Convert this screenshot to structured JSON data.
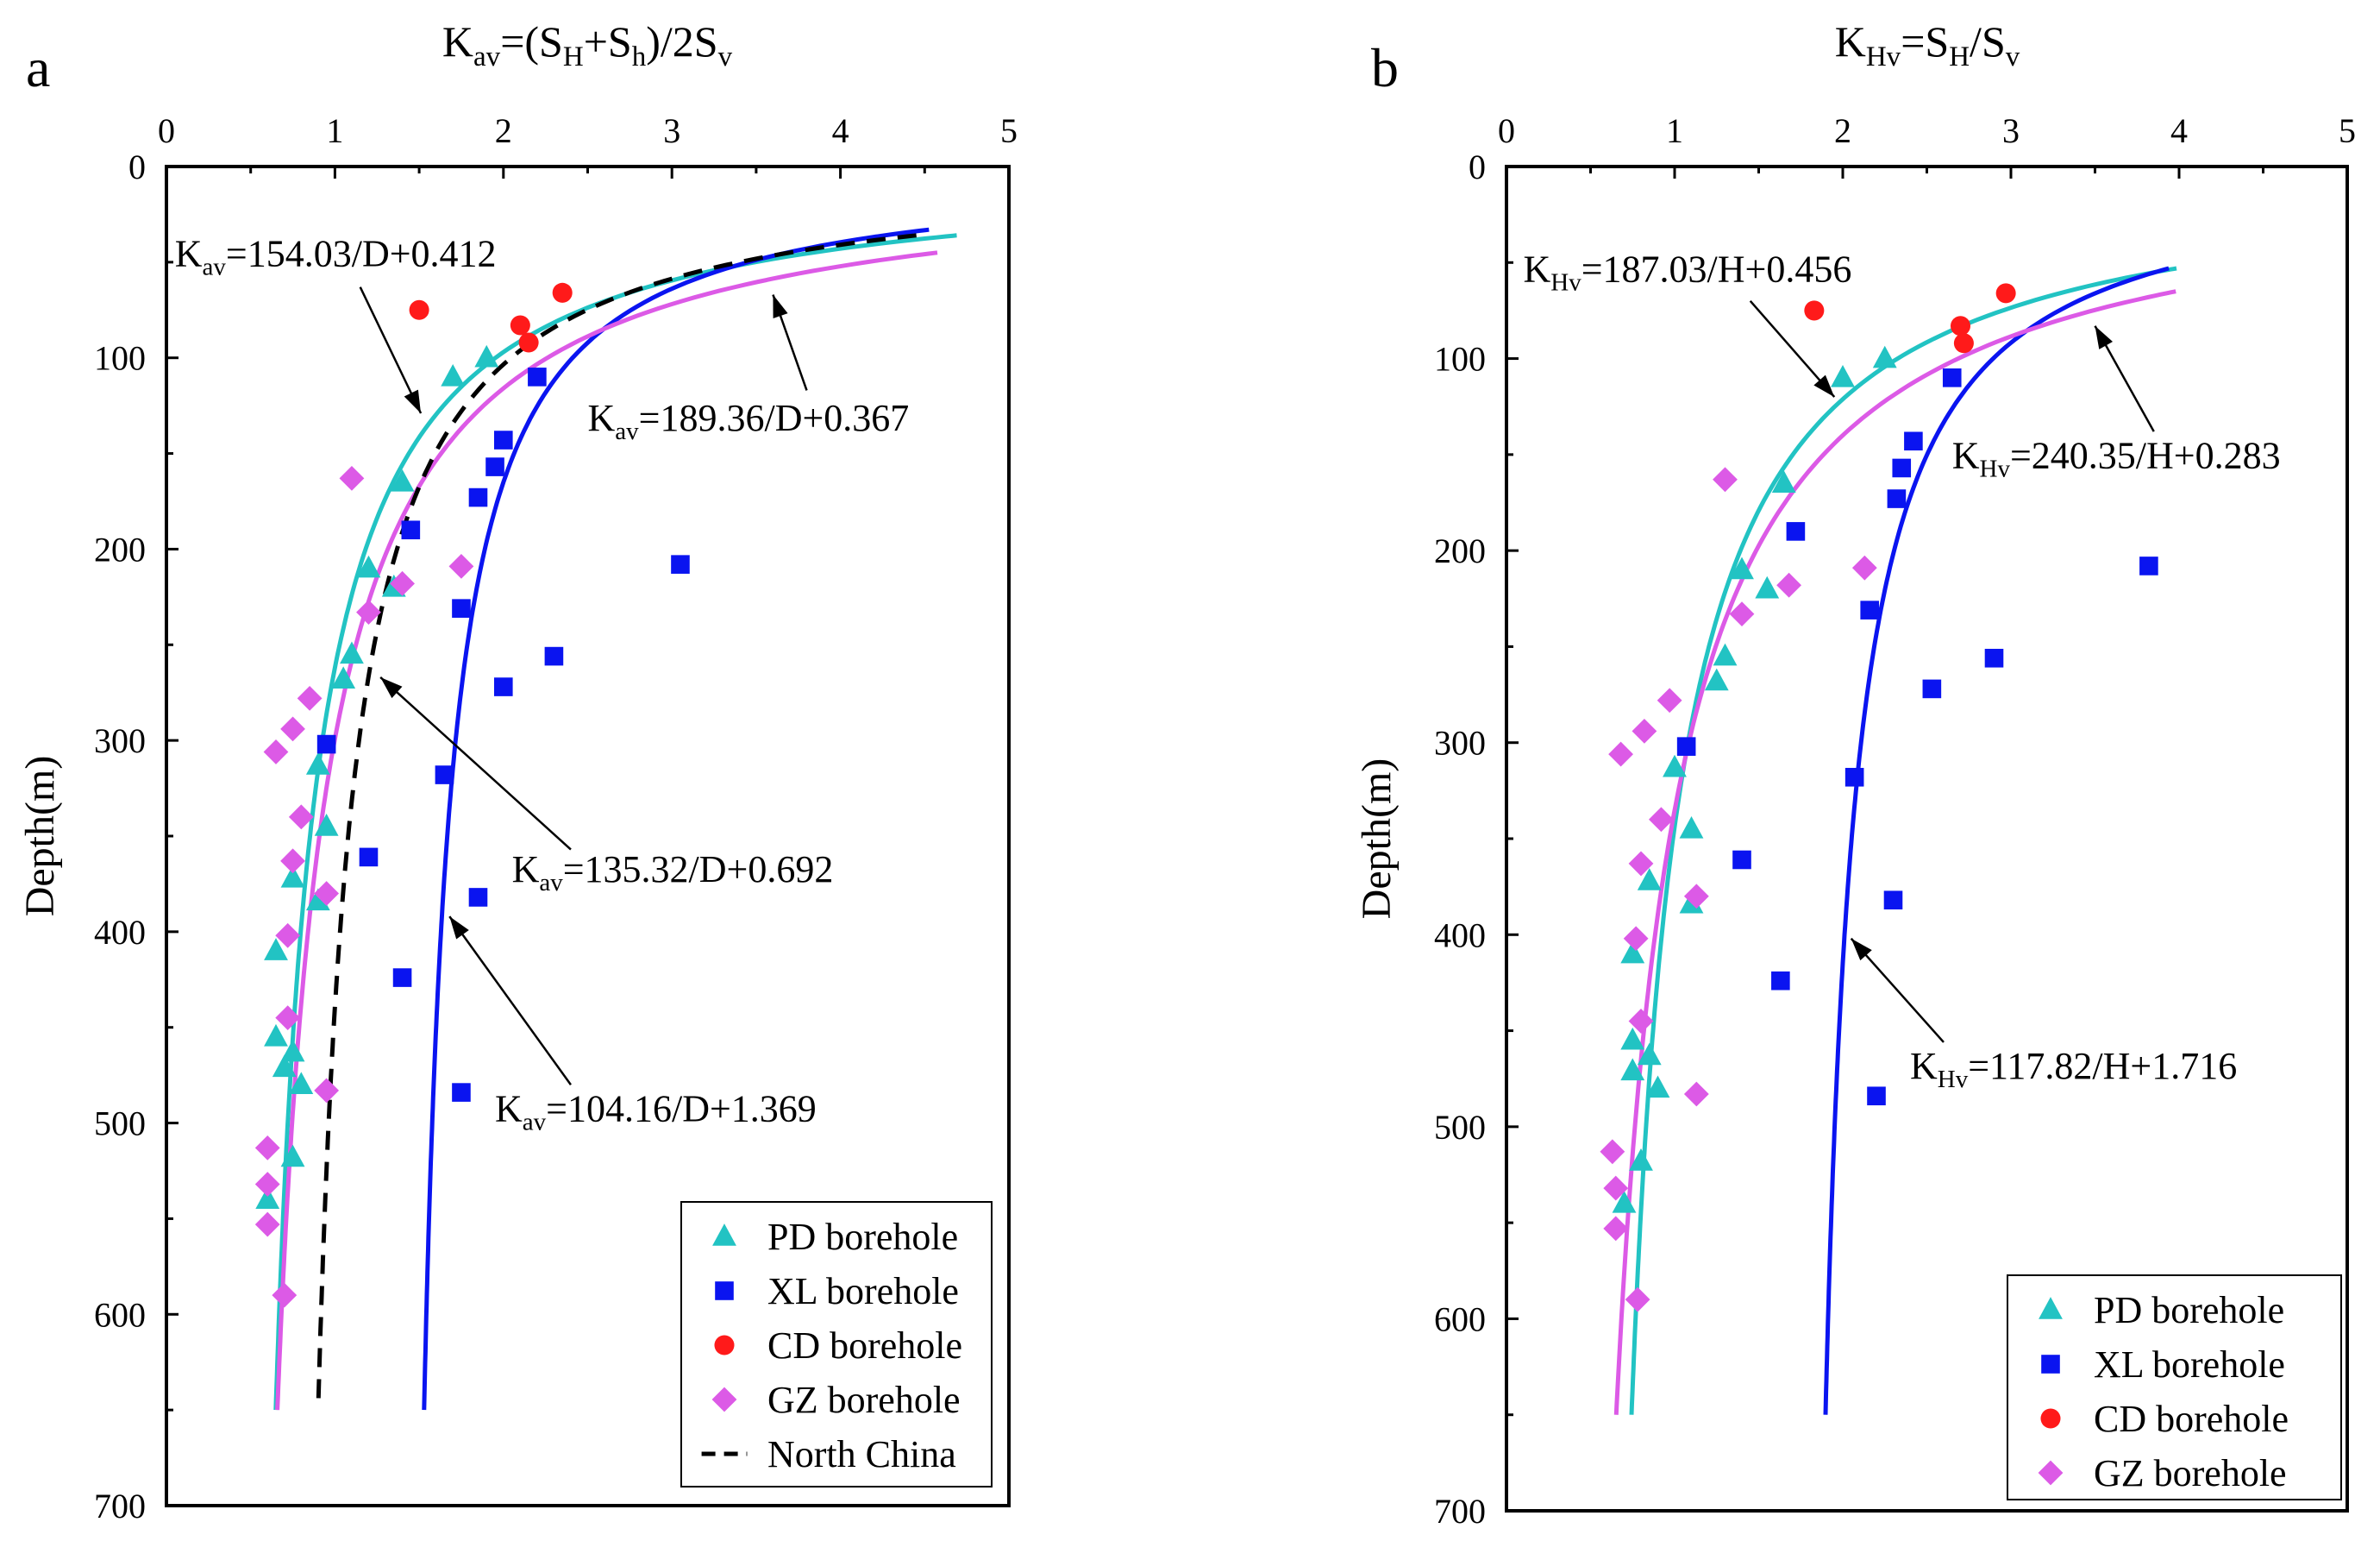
{
  "chart_data": [
    {
      "type": "scatter",
      "panel_label": "a",
      "title_parts": [
        {
          "t": "K",
          "s": "n"
        },
        {
          "t": "av",
          "s": "sub"
        },
        {
          "t": "=(S",
          "s": "n"
        },
        {
          "t": "H",
          "s": "sub"
        },
        {
          "t": "+S",
          "s": "n"
        },
        {
          "t": "h",
          "s": "sub"
        },
        {
          "t": ")/2S",
          "s": "n"
        },
        {
          "t": "v",
          "s": "sub"
        }
      ],
      "ylabel": "Depth(m)",
      "xlim": [
        0,
        5
      ],
      "ylim": [
        0,
        700
      ],
      "x_ticks": [
        "0",
        "1",
        "2",
        "3",
        "4",
        "5"
      ],
      "y_ticks": [
        "0",
        "100",
        "200",
        "300",
        "400",
        "500",
        "600",
        "700"
      ],
      "series": [
        {
          "name": "PD borehole",
          "marker": "triangle",
          "color": "#22c3c3",
          "x": [
            1.7,
            1.9,
            1.4,
            1.2,
            1.35,
            1.1,
            1.05,
            0.9,
            0.95,
            0.75,
            0.9,
            0.65,
            0.75,
            0.65,
            0.8,
            0.7,
            0.75,
            0.6
          ],
          "y": [
            110,
            100,
            165,
            210,
            220,
            255,
            268,
            313,
            345,
            372,
            384,
            410,
            463,
            455,
            480,
            471,
            518,
            540
          ]
        },
        {
          "name": "XL borehole",
          "marker": "square",
          "color": "#0a14f0",
          "x": [
            2.2,
            2.0,
            1.95,
            1.85,
            1.45,
            3.05,
            1.75,
            2.3,
            2.0,
            0.95,
            1.65,
            1.2,
            1.85,
            1.4,
            1.75
          ],
          "y": [
            110,
            143,
            157,
            173,
            190,
            208,
            231,
            256,
            272,
            302,
            318,
            361,
            382,
            424,
            484
          ]
        },
        {
          "name": "CD borehole",
          "marker": "circle",
          "color": "#ff1a1a",
          "x": [
            1.5,
            2.1,
            2.15,
            2.35
          ],
          "y": [
            75,
            83,
            92,
            66
          ]
        },
        {
          "name": "GZ borehole",
          "marker": "diamond",
          "color": "#dc5ae6",
          "x": [
            1.1,
            1.4,
            1.75,
            1.2,
            0.85,
            0.75,
            0.65,
            0.8,
            0.75,
            0.95,
            0.72,
            0.72,
            0.95,
            0.6,
            0.6,
            0.6,
            0.7
          ],
          "y": [
            163,
            218,
            209,
            233,
            278,
            294,
            306,
            340,
            363,
            380,
            402,
            445,
            483,
            513,
            532,
            553,
            590
          ]
        }
      ],
      "curves": [
        {
          "name": "PD fit",
          "color": "#22c3c3",
          "dashed": false,
          "a": 154.03,
          "b": 0.412,
          "ymin": 36,
          "ymax": 650
        },
        {
          "name": "XL fit",
          "color": "#0a14f0",
          "dashed": false,
          "a": 104.16,
          "b": 1.369,
          "ymin": 33,
          "ymax": 650
        },
        {
          "name": "GZ fit",
          "color": "#dc5ae6",
          "dashed": false,
          "a": 189.36,
          "b": 0.367,
          "ymin": 45,
          "ymax": 650
        },
        {
          "name": "North China",
          "color": "#000000",
          "dashed": true,
          "a": 135.32,
          "b": 0.692,
          "ymin": 36,
          "ymax": 650
        }
      ],
      "annotations": [
        {
          "parts": [
            {
              "t": "K",
              "s": "n"
            },
            {
              "t": "av",
              "s": "sub"
            },
            {
              "t": "=154.03/D+0.412",
              "s": "n"
            }
          ],
          "text_at": [
            0.05,
            52
          ],
          "arrow_from": [
            1.15,
            63
          ],
          "arrow_to": [
            1.51,
            129
          ]
        },
        {
          "parts": [
            {
              "t": "K",
              "s": "n"
            },
            {
              "t": "av",
              "s": "sub"
            },
            {
              "t": "=189.36/D+0.367",
              "s": "n"
            }
          ],
          "text_at": [
            2.5,
            138
          ],
          "arrow_from": [
            3.8,
            117
          ],
          "arrow_to": [
            3.6,
            67
          ]
        },
        {
          "parts": [
            {
              "t": "K",
              "s": "n"
            },
            {
              "t": "av",
              "s": "sub"
            },
            {
              "t": "=135.32/D+0.692",
              "s": "n"
            }
          ],
          "text_at": [
            2.05,
            374
          ],
          "arrow_from": [
            2.4,
            357
          ],
          "arrow_to": [
            1.27,
            267
          ]
        },
        {
          "parts": [
            {
              "t": "K",
              "s": "n"
            },
            {
              "t": "av",
              "s": "sub"
            },
            {
              "t": "=104.16/D+1.369",
              "s": "n"
            }
          ],
          "text_at": [
            1.95,
            499
          ],
          "arrow_from": [
            2.4,
            480
          ],
          "arrow_to": [
            1.68,
            392
          ]
        }
      ],
      "legend": {
        "position": "bottom-right",
        "entries": [
          {
            "label": "PD borehole",
            "symbol": "triangle",
            "color": "#22c3c3"
          },
          {
            "label": "XL borehole",
            "symbol": "square",
            "color": "#0a14f0"
          },
          {
            "label": "CD borehole",
            "symbol": "circle",
            "color": "#ff1a1a"
          },
          {
            "label": "GZ borehole",
            "symbol": "diamond",
            "color": "#dc5ae6"
          },
          {
            "label": "North China",
            "symbol": "dash",
            "color": "#000000"
          }
        ]
      }
    },
    {
      "type": "scatter",
      "panel_label": "b",
      "title_parts": [
        {
          "t": "K",
          "s": "n"
        },
        {
          "t": "Hv",
          "s": "sub"
        },
        {
          "t": "=S",
          "s": "n"
        },
        {
          "t": "H",
          "s": "sub"
        },
        {
          "t": "/S",
          "s": "n"
        },
        {
          "t": "v",
          "s": "sub"
        }
      ],
      "ylabel": "Depth(m)",
      "xlim": [
        0,
        5
      ],
      "ylim": [
        0,
        700
      ],
      "x_ticks": [
        "0",
        "1",
        "2",
        "3",
        "4",
        "5"
      ],
      "y_ticks": [
        "0",
        "100",
        "200",
        "300",
        "400",
        "500",
        "600",
        "700"
      ],
      "series": [
        {
          "name": "PD borehole",
          "marker": "triangle",
          "color": "#22c3c3",
          "x": [
            2.0,
            2.25,
            1.65,
            1.4,
            1.55,
            1.3,
            1.25,
            1.0,
            1.1,
            0.85,
            1.1,
            0.75,
            0.85,
            0.75,
            0.9,
            0.75,
            0.8,
            0.7
          ],
          "y": [
            110,
            100,
            165,
            210,
            220,
            255,
            268,
            313,
            345,
            372,
            384,
            410,
            463,
            455,
            480,
            471,
            518,
            540
          ]
        },
        {
          "name": "XL borehole",
          "marker": "square",
          "color": "#0a14f0",
          "x": [
            2.65,
            2.42,
            2.35,
            2.32,
            1.72,
            3.82,
            2.16,
            2.9,
            2.53,
            1.07,
            2.07,
            1.4,
            2.3,
            1.63,
            2.2
          ],
          "y": [
            110,
            143,
            157,
            173,
            190,
            208,
            231,
            256,
            272,
            302,
            318,
            361,
            382,
            424,
            484
          ]
        },
        {
          "name": "CD borehole",
          "marker": "circle",
          "color": "#ff1a1a",
          "x": [
            1.83,
            2.7,
            2.72,
            2.97
          ],
          "y": [
            75,
            83,
            92,
            66
          ]
        },
        {
          "name": "GZ borehole",
          "marker": "diamond",
          "color": "#dc5ae6",
          "x": [
            1.3,
            1.68,
            2.13,
            1.4,
            0.97,
            0.82,
            0.68,
            0.92,
            0.8,
            1.13,
            0.77,
            0.8,
            1.13,
            0.63,
            0.65,
            0.65,
            0.78
          ],
          "y": [
            163,
            218,
            209,
            233,
            278,
            294,
            306,
            340,
            363,
            380,
            402,
            445,
            483,
            513,
            532,
            553,
            590
          ]
        }
      ],
      "curves": [
        {
          "name": "PD fit",
          "color": "#22c3c3",
          "dashed": false,
          "a": 187.03,
          "b": 0.456,
          "ymin": 53,
          "ymax": 650
        },
        {
          "name": "XL fit",
          "color": "#0a14f0",
          "dashed": false,
          "a": 117.82,
          "b": 1.716,
          "ymin": 53,
          "ymax": 650
        },
        {
          "name": "GZ fit",
          "color": "#dc5ae6",
          "dashed": false,
          "a": 240.35,
          "b": 0.283,
          "ymin": 65,
          "ymax": 650
        }
      ],
      "annotations": [
        {
          "parts": [
            {
              "t": "K",
              "s": "n"
            },
            {
              "t": "Hv",
              "s": "sub"
            },
            {
              "t": "=187.03/H+0.456",
              "s": "n"
            }
          ],
          "text_at": [
            0.1,
            60
          ],
          "arrow_from": [
            1.45,
            70
          ],
          "arrow_to": [
            1.95,
            120
          ]
        },
        {
          "parts": [
            {
              "t": "K",
              "s": "n"
            },
            {
              "t": "Hv",
              "s": "sub"
            },
            {
              "t": "=240.35/H+0.283",
              "s": "n"
            }
          ],
          "text_at": [
            2.65,
            157
          ],
          "arrow_from": [
            3.85,
            138
          ],
          "arrow_to": [
            3.5,
            83
          ]
        },
        {
          "parts": [
            {
              "t": "K",
              "s": "n"
            },
            {
              "t": "Hv",
              "s": "sub"
            },
            {
              "t": "=117.82/H+1.716",
              "s": "n"
            }
          ],
          "text_at": [
            2.4,
            475
          ],
          "arrow_from": [
            2.6,
            456
          ],
          "arrow_to": [
            2.05,
            402
          ]
        }
      ],
      "legend": {
        "position": "bottom-right",
        "entries": [
          {
            "label": "PD borehole",
            "symbol": "triangle",
            "color": "#22c3c3"
          },
          {
            "label": "XL borehole",
            "symbol": "square",
            "color": "#0a14f0"
          },
          {
            "label": "CD borehole",
            "symbol": "circle",
            "color": "#ff1a1a"
          },
          {
            "label": "GZ borehole",
            "symbol": "diamond",
            "color": "#dc5ae6"
          }
        ]
      }
    }
  ]
}
